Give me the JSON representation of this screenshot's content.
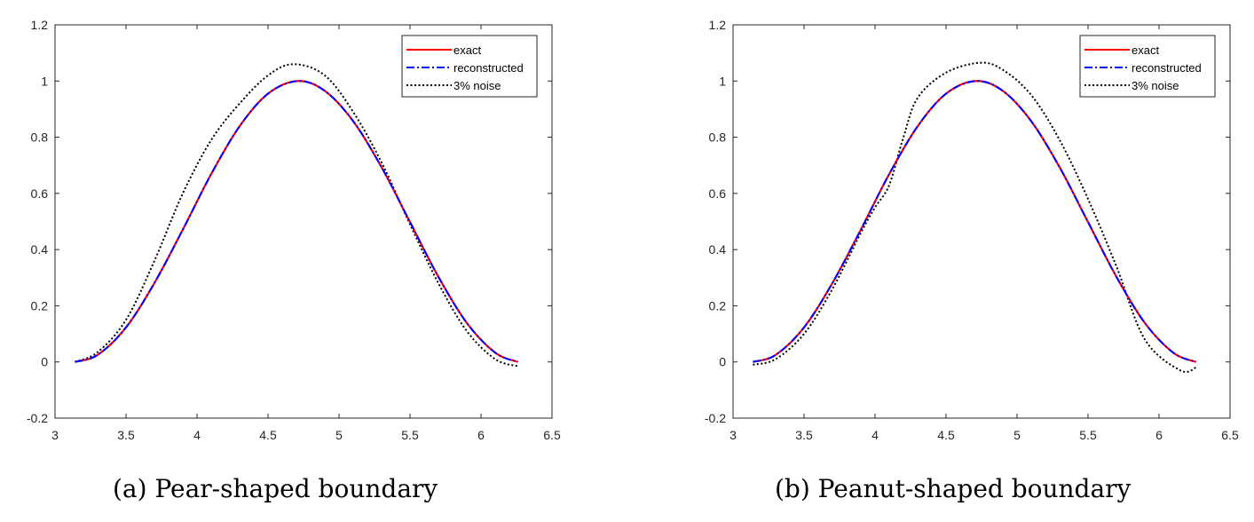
{
  "colors": {
    "exact": "#ff0000",
    "reconstructed": "#0000ff",
    "noise": "#000000"
  },
  "chart_data": [
    {
      "type": "line",
      "title": "",
      "caption": "(a) Pear-shaped boundary",
      "xlabel": "",
      "ylabel": "",
      "xlim": [
        3,
        6.5
      ],
      "ylim": [
        -0.2,
        1.2
      ],
      "xticks": [
        "3",
        "3.5",
        "4",
        "4.5",
        "5",
        "5.5",
        "6",
        "6.5"
      ],
      "yticks": [
        "-0.2",
        "0",
        "0.2",
        "0.4",
        "0.6",
        "0.8",
        "1",
        "1.2"
      ],
      "legend_position": "top-right",
      "series": [
        {
          "name": "exact",
          "style": "solid",
          "x": [
            3.14,
            3.3,
            3.5,
            3.7,
            3.9,
            4.1,
            4.3,
            4.5,
            4.71,
            4.9,
            5.1,
            5.3,
            5.5,
            5.7,
            5.9,
            6.1,
            6.26
          ],
          "y": [
            0,
            0.025,
            0.123,
            0.281,
            0.471,
            0.669,
            0.839,
            0.955,
            1.0,
            0.965,
            0.857,
            0.693,
            0.498,
            0.303,
            0.139,
            0.033,
            0
          ]
        },
        {
          "name": "reconstructed",
          "style": "dash-dot",
          "x": [
            3.14,
            3.3,
            3.5,
            3.7,
            3.9,
            4.1,
            4.3,
            4.5,
            4.71,
            4.9,
            5.1,
            5.3,
            5.5,
            5.7,
            5.9,
            6.1,
            6.26
          ],
          "y": [
            0,
            0.025,
            0.123,
            0.281,
            0.471,
            0.669,
            0.839,
            0.955,
            1.0,
            0.965,
            0.857,
            0.693,
            0.498,
            0.303,
            0.139,
            0.033,
            0
          ]
        },
        {
          "name": "3% noise",
          "style": "dotted",
          "x": [
            3.14,
            3.3,
            3.5,
            3.7,
            3.9,
            4.1,
            4.3,
            4.5,
            4.68,
            4.9,
            5.1,
            5.3,
            5.5,
            5.7,
            5.9,
            6.1,
            6.26
          ],
          "y": [
            0,
            0.035,
            0.15,
            0.36,
            0.6,
            0.79,
            0.92,
            1.02,
            1.06,
            1.02,
            0.89,
            0.71,
            0.49,
            0.28,
            0.11,
            0.01,
            -0.015
          ]
        }
      ]
    },
    {
      "type": "line",
      "title": "",
      "caption": "(b) Peanut-shaped boundary",
      "xlabel": "",
      "ylabel": "",
      "xlim": [
        3,
        6.5
      ],
      "ylim": [
        -0.2,
        1.2
      ],
      "xticks": [
        "3",
        "3.5",
        "4",
        "4.5",
        "5",
        "5.5",
        "6",
        "6.5"
      ],
      "yticks": [
        "-0.2",
        "0",
        "0.2",
        "0.4",
        "0.6",
        "0.8",
        "1",
        "1.2"
      ],
      "legend_position": "top-right",
      "series": [
        {
          "name": "exact",
          "style": "solid",
          "x": [
            3.14,
            3.3,
            3.5,
            3.7,
            3.9,
            4.1,
            4.3,
            4.5,
            4.71,
            4.9,
            5.1,
            5.3,
            5.5,
            5.7,
            5.9,
            6.1,
            6.26
          ],
          "y": [
            0,
            0.025,
            0.123,
            0.281,
            0.471,
            0.669,
            0.839,
            0.955,
            1.0,
            0.965,
            0.857,
            0.693,
            0.498,
            0.303,
            0.139,
            0.033,
            0
          ]
        },
        {
          "name": "reconstructed",
          "style": "dash-dot",
          "x": [
            3.14,
            3.3,
            3.5,
            3.7,
            3.9,
            4.1,
            4.3,
            4.5,
            4.71,
            4.9,
            5.1,
            5.3,
            5.5,
            5.7,
            5.9,
            6.1,
            6.26
          ],
          "y": [
            0,
            0.025,
            0.123,
            0.281,
            0.471,
            0.669,
            0.839,
            0.955,
            1.0,
            0.965,
            0.857,
            0.693,
            0.498,
            0.303,
            0.139,
            0.033,
            0
          ]
        },
        {
          "name": "3% noise",
          "style": "dotted",
          "x": [
            3.14,
            3.3,
            3.5,
            3.7,
            3.9,
            4.0,
            4.1,
            4.2,
            4.3,
            4.5,
            4.74,
            4.9,
            5.1,
            5.3,
            5.5,
            5.7,
            5.9,
            6.15,
            6.26
          ],
          "y": [
            -0.01,
            0.01,
            0.1,
            0.26,
            0.46,
            0.55,
            0.63,
            0.8,
            0.94,
            1.03,
            1.065,
            1.04,
            0.95,
            0.79,
            0.58,
            0.34,
            0.08,
            -0.03,
            -0.02
          ]
        }
      ]
    }
  ]
}
